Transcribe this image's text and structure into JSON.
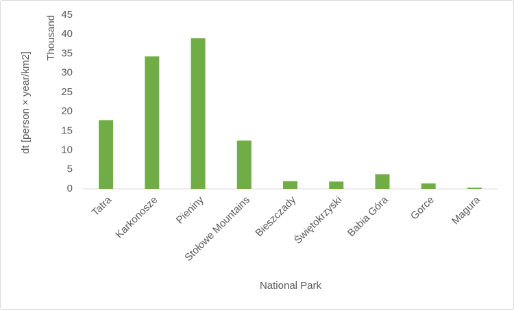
{
  "chart_data": {
    "type": "bar",
    "y_axis_label": "dt [person × year/km2]",
    "y_unit_label": "Thousand",
    "x_axis_label": "National Park",
    "categories": [
      "Tatra",
      "Karkonosze",
      "Pieniny",
      "Stołowe Mountains",
      "Bieszczady",
      "Świętokrzyski",
      "Babia Góra",
      "Gorce",
      "Magura"
    ],
    "values": [
      17.8,
      34.3,
      39.0,
      12.5,
      2.0,
      1.9,
      3.8,
      1.4,
      0.3
    ],
    "color": "#70ad47",
    "ylim": [
      0,
      45
    ],
    "yticks": [
      0,
      5,
      10,
      15,
      20,
      25,
      30,
      35,
      40,
      45
    ],
    "grid": false
  }
}
